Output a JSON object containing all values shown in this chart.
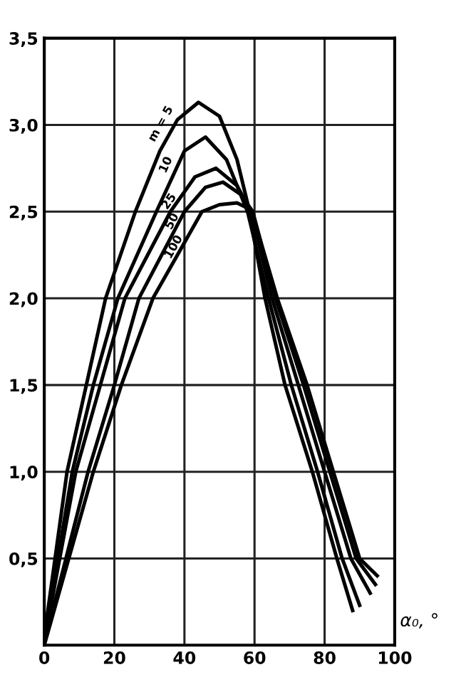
{
  "chart_data": {
    "type": "line",
    "xlabel": "α₀, °",
    "series": [
      {
        "name": "m = 5",
        "color": "#000000",
        "x": [
          0,
          6.5,
          12,
          17.5,
          26,
          33,
          38,
          44,
          50,
          55,
          58,
          63,
          68.7,
          76.5,
          83.5,
          88
        ],
        "values": [
          0.05,
          1.0,
          1.5,
          2.0,
          2.5,
          2.85,
          3.03,
          3.13,
          3.05,
          2.8,
          2.55,
          2.0,
          1.5,
          1.0,
          0.5,
          0.2
        ]
      },
      {
        "name": "10",
        "color": "#000000",
        "x": [
          0,
          8,
          14,
          21,
          32,
          40,
          46,
          52,
          58,
          64,
          70.5,
          78,
          85,
          90
        ],
        "values": [
          0.03,
          1.0,
          1.5,
          2.0,
          2.5,
          2.85,
          2.93,
          2.8,
          2.5,
          2.0,
          1.5,
          1.0,
          0.5,
          0.23
        ]
      },
      {
        "name": "25",
        "color": "#000000",
        "x": [
          0,
          9,
          16,
          23,
          36,
          43,
          49,
          55,
          59,
          65,
          72.5,
          80,
          87.5,
          93
        ],
        "values": [
          0.02,
          1.0,
          1.5,
          2.0,
          2.5,
          2.7,
          2.75,
          2.65,
          2.5,
          2.0,
          1.5,
          1.0,
          0.5,
          0.3
        ]
      },
      {
        "name": "50",
        "color": "#000000",
        "x": [
          0,
          12.5,
          20,
          27,
          40,
          46,
          51,
          56,
          59.5,
          66,
          74,
          81.5,
          89,
          94.5
        ],
        "values": [
          0.01,
          1.0,
          1.5,
          2.0,
          2.5,
          2.64,
          2.67,
          2.6,
          2.5,
          2.0,
          1.5,
          1.0,
          0.5,
          0.35
        ]
      },
      {
        "name": "100",
        "color": "#000000",
        "x": [
          0,
          14,
          22,
          31,
          45,
          50,
          55,
          58,
          60,
          66.5,
          75,
          82.5,
          90,
          95
        ],
        "values": [
          0.0,
          1.0,
          1.5,
          2.0,
          2.5,
          2.54,
          2.55,
          2.52,
          2.45,
          2.0,
          1.5,
          1.0,
          0.5,
          0.4
        ]
      }
    ],
    "xlim": [
      0,
      100
    ],
    "ylim": [
      0,
      3.5
    ],
    "xticks": [
      0,
      20,
      40,
      60,
      80,
      100
    ],
    "yticks": [
      {
        "value": 0.5,
        "label": "0,5"
      },
      {
        "value": 1.0,
        "label": "1,0"
      },
      {
        "value": 1.5,
        "label": "1,5"
      },
      {
        "value": 2.0,
        "label": "2,0"
      },
      {
        "value": 2.5,
        "label": "2,5"
      },
      {
        "value": 3.0,
        "label": "3,0"
      },
      {
        "value": 3.5,
        "label": "3,5"
      }
    ],
    "grid": true,
    "line_style": "solid",
    "marker": "none",
    "legend": false
  }
}
